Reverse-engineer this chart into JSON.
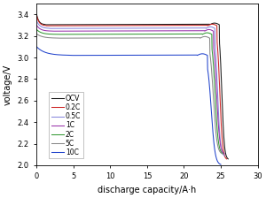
{
  "title": "",
  "xlabel": "discharge capacity/A·h",
  "ylabel": "voltage/V",
  "xlim": [
    0,
    30
  ],
  "ylim": [
    2.0,
    3.5
  ],
  "xticks": [
    0,
    5,
    10,
    15,
    20,
    25,
    30
  ],
  "yticks": [
    2.0,
    2.2,
    2.4,
    2.6,
    2.8,
    3.0,
    3.2,
    3.4
  ],
  "curves": [
    {
      "label": "OCV",
      "color": "#1a1a1a",
      "start_v": 3.4,
      "plateau_v": 3.305,
      "bump_v": 3.32,
      "end_capacity": 26.0,
      "end_v": 2.05,
      "plateau_start": 1.2,
      "drop_start": 24.8,
      "bump_x": 23.5
    },
    {
      "label": "0.2C",
      "color": "#cc2222",
      "start_v": 3.39,
      "plateau_v": 3.295,
      "bump_v": 3.31,
      "end_capacity": 25.8,
      "end_v": 2.05,
      "plateau_start": 1.3,
      "drop_start": 24.5,
      "bump_x": 23.2
    },
    {
      "label": "0.5C",
      "color": "#8888dd",
      "start_v": 3.34,
      "plateau_v": 3.27,
      "bump_v": 3.285,
      "end_capacity": 25.5,
      "end_v": 2.08,
      "plateau_start": 1.8,
      "drop_start": 24.2,
      "bump_x": 23.0
    },
    {
      "label": "1C",
      "color": "#9933aa",
      "start_v": 3.3,
      "plateau_v": 3.245,
      "bump_v": 3.26,
      "end_capacity": 25.5,
      "end_v": 2.1,
      "plateau_start": 2.0,
      "drop_start": 24.0,
      "bump_x": 22.8
    },
    {
      "label": "2C",
      "color": "#339933",
      "start_v": 3.26,
      "plateau_v": 3.215,
      "bump_v": 3.23,
      "end_capacity": 25.3,
      "end_v": 2.1,
      "plateau_start": 2.5,
      "drop_start": 23.8,
      "bump_x": 22.5
    },
    {
      "label": "5C",
      "color": "#888888",
      "start_v": 3.22,
      "plateau_v": 3.18,
      "bump_v": 3.195,
      "end_capacity": 25.2,
      "end_v": 2.1,
      "plateau_start": 3.0,
      "drop_start": 23.5,
      "bump_x": 22.2
    },
    {
      "label": "10C",
      "color": "#2244cc",
      "start_v": 3.1,
      "plateau_v": 3.02,
      "bump_v": 3.035,
      "end_capacity": 25.0,
      "end_v": 2.0,
      "plateau_start": 4.5,
      "drop_start": 23.2,
      "bump_x": 21.8
    }
  ],
  "figsize": [
    3.0,
    2.24
  ],
  "dpi": 100
}
